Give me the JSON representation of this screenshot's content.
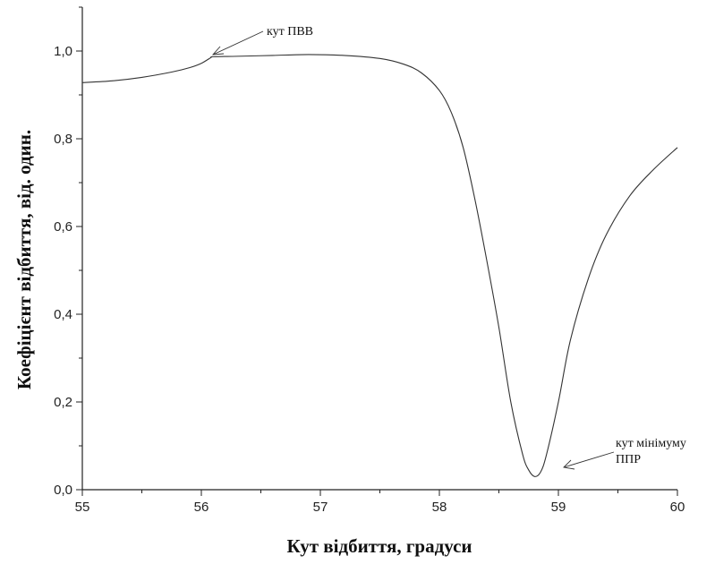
{
  "chart_data": {
    "type": "line",
    "title": "",
    "xlabel": "Кут відбиття, градуси",
    "ylabel": "Коефіцієнт відбиття, від. один.",
    "xlim": [
      55,
      60
    ],
    "ylim": [
      0,
      1.1
    ],
    "x_ticks": [
      "55",
      "56",
      "57",
      "58",
      "59",
      "60"
    ],
    "y_ticks": [
      "0,0",
      "0,2",
      "0,4",
      "0,6",
      "0,8",
      "1,0"
    ],
    "grid": false,
    "legend": "none",
    "series": [
      {
        "name": "",
        "x": [
          55.0,
          55.25,
          55.5,
          55.75,
          55.9,
          56.0,
          56.08,
          56.1,
          56.3,
          56.6,
          56.9,
          57.2,
          57.5,
          57.7,
          57.85,
          58.0,
          58.1,
          58.2,
          58.3,
          58.4,
          58.5,
          58.6,
          58.7,
          58.75,
          58.8,
          58.85,
          58.9,
          59.0,
          59.1,
          59.25,
          59.4,
          59.6,
          59.8,
          60.0
        ],
        "y": [
          0.928,
          0.932,
          0.94,
          0.952,
          0.962,
          0.972,
          0.985,
          0.987,
          0.988,
          0.99,
          0.992,
          0.99,
          0.983,
          0.97,
          0.95,
          0.91,
          0.86,
          0.78,
          0.66,
          0.52,
          0.37,
          0.2,
          0.08,
          0.045,
          0.03,
          0.04,
          0.08,
          0.2,
          0.34,
          0.48,
          0.58,
          0.67,
          0.73,
          0.78
        ]
      }
    ],
    "annotations": [
      {
        "text": "кут ПВВ",
        "x": 56.1,
        "y": 0.99
      },
      {
        "text": "кут мінімуму",
        "x": 59.05,
        "y": 0.05
      },
      {
        "text": "ППР",
        "x": 59.05,
        "y": 0.05
      }
    ]
  }
}
